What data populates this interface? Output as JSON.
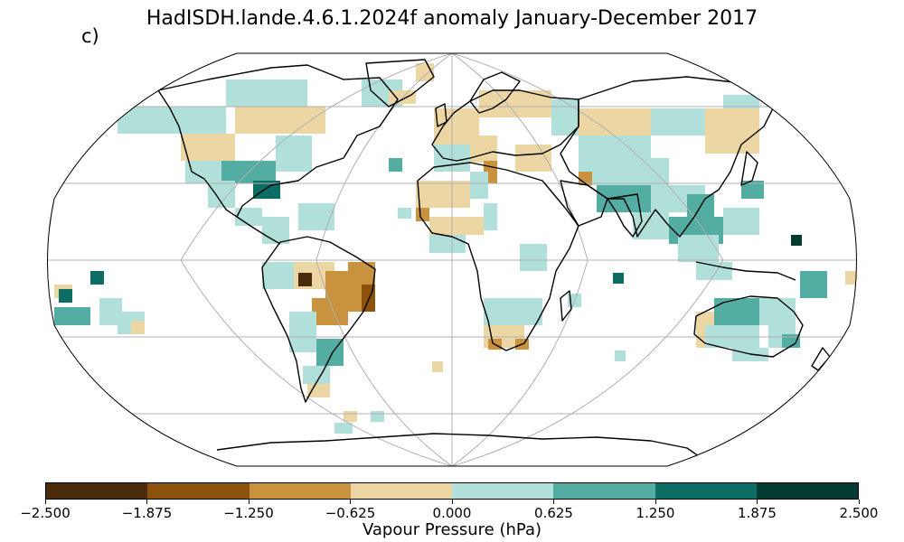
{
  "title": "HadISDH.lande.4.6.1.2024f anomaly January-December 2017",
  "panel_label": "c)",
  "colorbar": {
    "label": "Vapour Pressure (hPa)",
    "ticks": [
      "−2.500",
      "−1.875",
      "−1.250",
      "−0.625",
      "0.000",
      "0.625",
      "1.250",
      "1.875",
      "2.500"
    ],
    "colors": [
      "#4a2c0a",
      "#8c510a",
      "#c8923e",
      "#ecd6a4",
      "#b0e0d9",
      "#53ada3",
      "#0b6d63",
      "#013b31"
    ]
  },
  "map": {
    "projection": "Robinson",
    "coastlines": true,
    "graticule": true,
    "coverage": "land stations only, sparse grid boxes"
  }
}
